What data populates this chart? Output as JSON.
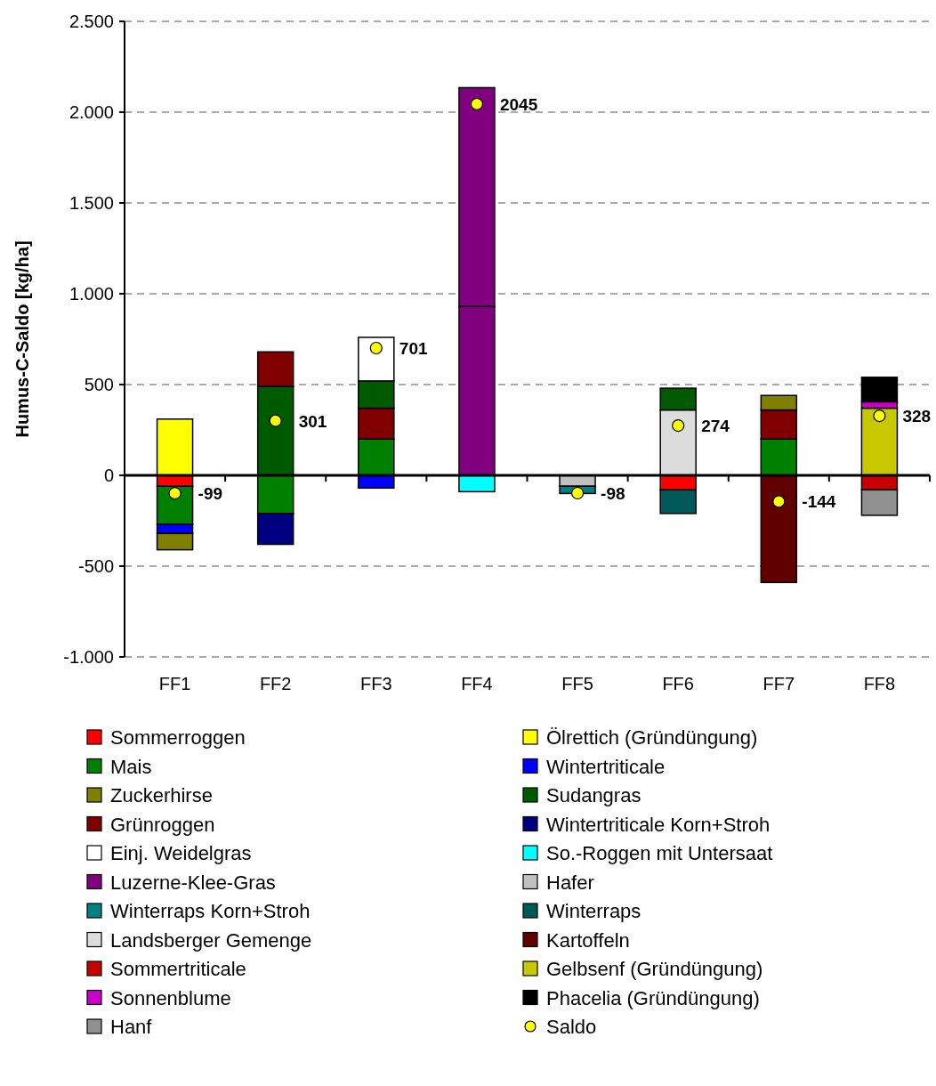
{
  "chart_data": {
    "type": "bar",
    "stacked": true,
    "ylabel": "Humus-C-Saldo [kg/ha]",
    "categories": [
      "FF1",
      "FF2",
      "FF3",
      "FF4",
      "FF5",
      "FF6",
      "FF7",
      "FF8"
    ],
    "ylim": [
      -1000,
      2500
    ],
    "yticks": [
      {
        "value": -1000,
        "label": "-1.000"
      },
      -500,
      0,
      500,
      {
        "value": 1000,
        "label": "1.000"
      },
      {
        "value": 1500,
        "label": "1.500"
      },
      {
        "value": 2000,
        "label": "2.000"
      },
      {
        "value": 2500,
        "label": "2.500"
      }
    ],
    "grid": "y",
    "legend": "bottom",
    "series": [
      {
        "name": "Sommerroggen",
        "color": "#ff0000",
        "values": [
          -60,
          null,
          null,
          null,
          null,
          -80,
          null,
          null
        ]
      },
      {
        "name": "Ölrettich (Gründüngung)",
        "color": "#ffff00",
        "values": [
          310,
          null,
          null,
          null,
          null,
          null,
          null,
          null
        ]
      },
      {
        "name": "Mais",
        "color": "#008000",
        "values": [
          -210,
          -210,
          200,
          null,
          null,
          null,
          200,
          null
        ]
      },
      {
        "name": "Wintertriticale",
        "color": "#0000ff",
        "values": [
          -50,
          null,
          -70,
          null,
          null,
          null,
          null,
          null
        ]
      },
      {
        "color": "#800000",
        "values": [
          null,
          null,
          170,
          null,
          null,
          null,
          null,
          null
        ]
      },
      {
        "name": "Zuckerhirse",
        "color": "#808000",
        "values": [
          -90,
          null,
          null,
          null,
          null,
          null,
          null,
          null
        ]
      },
      {
        "name": "Sudangras",
        "color": "#005a00",
        "values": [
          null,
          490,
          150,
          null,
          null,
          null,
          null,
          null
        ]
      },
      {
        "name": "Grünroggen",
        "color": "#800000",
        "values": [
          null,
          190,
          null,
          null,
          null,
          null,
          160,
          null
        ]
      },
      {
        "color": "#808000",
        "values": [
          null,
          null,
          null,
          null,
          null,
          null,
          80,
          null
        ]
      },
      {
        "name": "Wintertriticale Korn+Stroh",
        "color": "#000080",
        "values": [
          null,
          -170,
          null,
          null,
          null,
          null,
          null,
          null
        ]
      },
      {
        "name": "Einj. Weidelgras",
        "color": "#ffffff",
        "values": [
          null,
          null,
          240,
          null,
          null,
          null,
          null,
          null
        ]
      },
      {
        "name": "So.-Roggen mit Untersaat",
        "color": "#00ffff",
        "values": [
          null,
          null,
          null,
          -90,
          null,
          null,
          null,
          null
        ]
      },
      {
        "name": "Luzerne-Klee-Gras",
        "color": "#800080",
        "values": [
          null,
          null,
          null,
          930,
          null,
          null,
          null,
          null
        ]
      },
      {
        "color": "#800080",
        "values": [
          null,
          null,
          null,
          1205,
          null,
          null,
          null,
          null
        ]
      },
      {
        "name": "Hafer",
        "color": "#c0c0c0",
        "values": [
          null,
          null,
          null,
          null,
          -60,
          null,
          null,
          null
        ]
      },
      {
        "name": "Winterraps Korn+Stroh",
        "color": "#008080",
        "values": [
          null,
          null,
          null,
          null,
          -40,
          null,
          null,
          null
        ]
      },
      {
        "name": "Winterraps",
        "color": "#005a5a",
        "values": [
          null,
          null,
          null,
          null,
          null,
          -130,
          null,
          null
        ]
      },
      {
        "name": "Landsberger Gemenge",
        "color": "#dcdcdc",
        "values": [
          null,
          null,
          null,
          null,
          null,
          360,
          null,
          null
        ]
      },
      {
        "color": "#005a00",
        "values": [
          null,
          null,
          null,
          null,
          null,
          120,
          null,
          null
        ]
      },
      {
        "name": "Kartoffeln",
        "color": "#600000",
        "values": [
          null,
          null,
          null,
          null,
          null,
          null,
          -590,
          null
        ]
      },
      {
        "name": "Sommertriticale",
        "color": "#c80000",
        "values": [
          null,
          null,
          null,
          null,
          null,
          null,
          null,
          -80
        ]
      },
      {
        "name": "Gelbsenf (Gründüngung)",
        "color": "#c8c800",
        "values": [
          null,
          null,
          null,
          null,
          null,
          null,
          null,
          370
        ]
      },
      {
        "name": "Sonnenblume",
        "color": "#c800c8",
        "values": [
          null,
          null,
          null,
          null,
          null,
          null,
          null,
          35
        ]
      },
      {
        "name": "Phacelia (Gründüngung)",
        "color": "#000000",
        "values": [
          null,
          null,
          null,
          null,
          null,
          null,
          null,
          135
        ]
      },
      {
        "name": "Hanf",
        "color": "#909090",
        "values": [
          null,
          null,
          null,
          null,
          null,
          null,
          null,
          -140
        ]
      },
      {
        "name": "Saldo",
        "type": "scatter",
        "marker": "circle",
        "data_labels": true,
        "color": "#ffff00",
        "values": [
          -99,
          301,
          701,
          2045,
          -98,
          274,
          -144,
          328
        ]
      }
    ]
  }
}
